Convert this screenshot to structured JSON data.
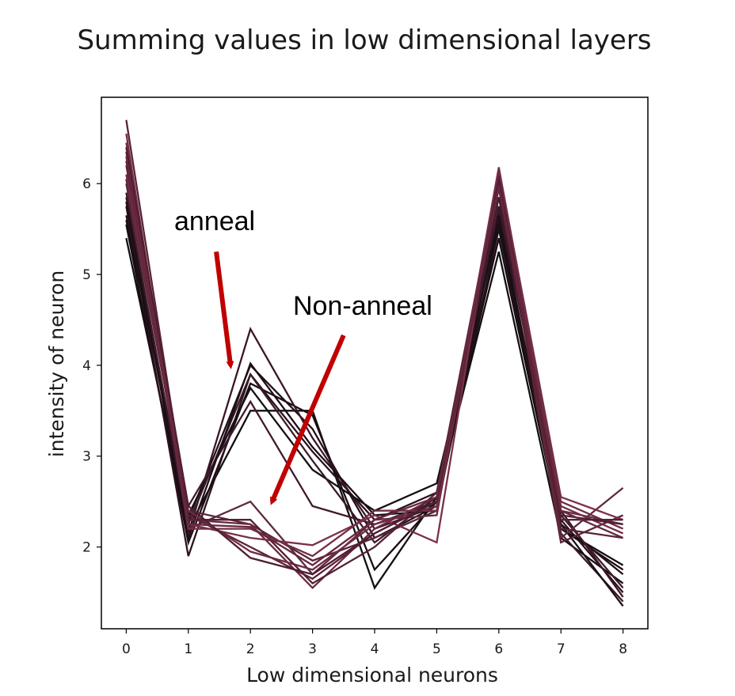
{
  "chart_data": {
    "type": "line",
    "title": "Summing values in low dimensional layers",
    "xlabel": "Low dimensional neurons",
    "ylabel": "intensity of neuron",
    "xlim": [
      -0.4,
      8.4
    ],
    "ylim": [
      1.1,
      6.95
    ],
    "x": [
      0,
      1,
      2,
      3,
      4,
      5,
      6,
      7,
      8
    ],
    "xticks": [
      "0",
      "1",
      "2",
      "3",
      "4",
      "5",
      "6",
      "7",
      "8"
    ],
    "yticks": [
      2,
      3,
      4,
      5,
      6
    ],
    "grid": false,
    "series": [
      {
        "group": "anneal",
        "color": "#111111",
        "values": [
          5.4,
          2.2,
          3.5,
          3.5,
          1.55,
          2.55,
          5.25,
          2.1,
          1.6
        ]
      },
      {
        "group": "anneal",
        "color": "#1b0c12",
        "values": [
          5.55,
          2.05,
          3.8,
          3.45,
          1.75,
          2.5,
          5.4,
          2.2,
          1.75
        ]
      },
      {
        "group": "anneal",
        "color": "#24101a",
        "values": [
          5.65,
          2.3,
          4.0,
          3.3,
          2.1,
          2.45,
          5.5,
          2.25,
          1.7
        ]
      },
      {
        "group": "anneal",
        "color": "#2c1220",
        "values": [
          5.75,
          1.9,
          3.9,
          3.05,
          2.3,
          2.6,
          5.6,
          2.3,
          1.5
        ]
      },
      {
        "group": "anneal",
        "color": "#3a1628",
        "values": [
          5.85,
          2.15,
          4.4,
          3.2,
          2.2,
          2.45,
          5.75,
          2.4,
          1.45
        ]
      },
      {
        "group": "anneal",
        "color": "#141014",
        "values": [
          5.6,
          2.35,
          3.75,
          2.85,
          2.4,
          2.7,
          5.55,
          2.2,
          1.8
        ]
      },
      {
        "group": "anneal",
        "color": "#401a2c",
        "values": [
          6.05,
          2.45,
          3.6,
          2.45,
          2.25,
          2.5,
          5.85,
          2.35,
          1.55
        ]
      },
      {
        "group": "anneal",
        "color": "#3a1a28",
        "values": [
          5.9,
          2.25,
          3.9,
          2.95,
          2.05,
          2.55,
          5.7,
          2.15,
          1.4
        ]
      },
      {
        "group": "anneal",
        "color": "#1e0e16",
        "values": [
          5.8,
          2.1,
          4.02,
          3.1,
          2.35,
          2.4,
          5.65,
          2.25,
          1.35
        ]
      },
      {
        "group": "non-anneal",
        "color": "#5a2438",
        "values": [
          6.0,
          2.4,
          2.25,
          1.85,
          2.1,
          2.4,
          6.0,
          2.05,
          2.35
        ]
      },
      {
        "group": "non-anneal",
        "color": "#6a2a40",
        "values": [
          6.2,
          2.3,
          2.25,
          1.55,
          2.2,
          2.55,
          6.1,
          2.4,
          2.25
        ]
      },
      {
        "group": "non-anneal",
        "color": "#602a3e",
        "values": [
          6.35,
          2.2,
          2.5,
          1.7,
          2.3,
          2.35,
          6.05,
          2.1,
          2.65
        ]
      },
      {
        "group": "non-anneal",
        "color": "#7a3048",
        "values": [
          6.45,
          2.25,
          2.1,
          2.02,
          2.35,
          2.05,
          6.15,
          2.55,
          2.3
        ]
      },
      {
        "group": "non-anneal",
        "color": "#5c2236",
        "values": [
          6.7,
          2.35,
          2.0,
          1.65,
          2.15,
          2.5,
          5.95,
          2.2,
          2.1
        ]
      },
      {
        "group": "non-anneal",
        "color": "#6e2c44",
        "values": [
          6.1,
          2.4,
          1.95,
          1.75,
          2.25,
          2.45,
          6.12,
          2.5,
          2.2
        ]
      },
      {
        "group": "non-anneal",
        "color": "#542038",
        "values": [
          6.25,
          2.3,
          2.3,
          1.6,
          2.0,
          2.6,
          6.08,
          2.3,
          2.3
        ]
      },
      {
        "group": "non-anneal",
        "color": "#722e46",
        "values": [
          6.55,
          2.2,
          2.2,
          1.9,
          2.4,
          2.4,
          6.18,
          2.45,
          2.15
        ]
      },
      {
        "group": "non-anneal",
        "color": "#4e1e32",
        "values": [
          6.4,
          2.45,
          1.88,
          1.7,
          2.15,
          2.5,
          6.02,
          2.35,
          2.25
        ]
      },
      {
        "group": "non-anneal",
        "color": "#66283e",
        "values": [
          6.3,
          2.25,
          2.22,
          1.8,
          2.3,
          2.55,
          5.98,
          2.4,
          2.1
        ]
      }
    ],
    "annotations": [
      {
        "text": "anneal",
        "arrow_color": "#c00000",
        "arrow_from": [
          1.45,
          5.25
        ],
        "arrow_to": [
          1.68,
          4.0
        ]
      },
      {
        "text": "Non-anneal",
        "arrow_color": "#c00000",
        "arrow_from": [
          3.5,
          4.33
        ],
        "arrow_to": [
          2.35,
          2.5
        ]
      }
    ]
  }
}
